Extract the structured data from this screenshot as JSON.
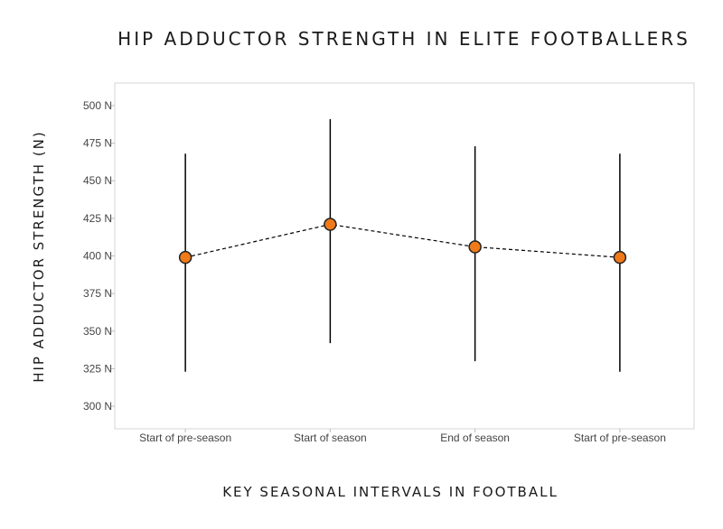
{
  "chart_data": {
    "type": "scatter",
    "title": "HIP ADDUCTOR STRENGTH IN ELITE FOOTBALLERS",
    "xlabel": "KEY SEASONAL INTERVALS IN FOOTBALL",
    "ylabel": "HIP ADDUCTOR STRENGTH (N)",
    "categories": [
      "Start of pre-season",
      "Start of season",
      "End of season",
      "Start of pre-season"
    ],
    "values": [
      399,
      421,
      406,
      399
    ],
    "error_low": [
      323,
      342,
      330,
      323
    ],
    "error_high": [
      468,
      491,
      473,
      468
    ],
    "ylim": [
      285,
      515
    ],
    "yticks": [
      300,
      325,
      350,
      375,
      400,
      425,
      450,
      475,
      500
    ],
    "ytick_unit": "N",
    "connector": "dashed",
    "grid": false,
    "legend": "none",
    "colors": {
      "marker_fill": "#f07a1a",
      "marker_stroke": "#222222",
      "line": "#000000"
    }
  }
}
